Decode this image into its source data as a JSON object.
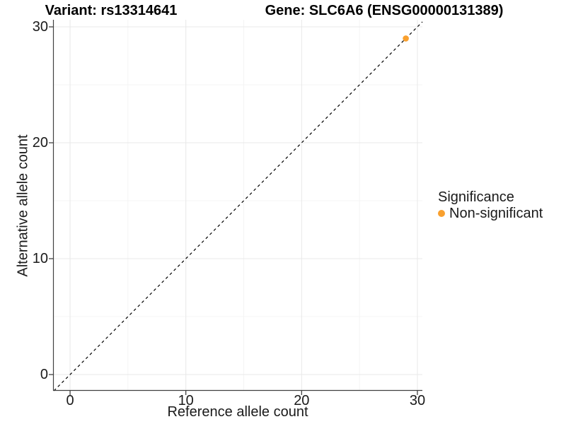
{
  "titles": {
    "variant": "Variant: rs13314641",
    "gene": "Gene: SLC6A6 (ENSG00000131389)"
  },
  "chart_data": {
    "type": "scatter",
    "title": "Variant: rs13314641    Gene: SLC6A6 (ENSG00000131389)",
    "xlabel": "Reference allele count",
    "ylabel": "Alternative allele count",
    "points": [
      {
        "x": 29,
        "y": 29,
        "series": "Non-significant"
      }
    ],
    "x_ticks": [
      0,
      10,
      20,
      30
    ],
    "y_ticks": [
      0,
      10,
      20,
      30
    ],
    "x_minor_ticks": [
      5,
      15,
      25
    ],
    "y_minor_ticks": [
      5,
      15,
      25
    ],
    "xlim": [
      -1.47,
      30.43
    ],
    "ylim": [
      -1.4,
      30.61
    ],
    "grid": true,
    "reference_line": {
      "type": "identity",
      "intercept": 0,
      "slope": 1,
      "style": "dashed"
    },
    "legend": {
      "title": "Significance",
      "position": "right",
      "entries": [
        {
          "label": "Non-significant",
          "color": "#F9A02E",
          "marker": "circle"
        }
      ]
    }
  },
  "colors": {
    "point": "#F9A02E",
    "grid_major": "#e8e8e8",
    "grid_minor": "#f2f2f2",
    "axis_line": "#404040",
    "tick_mark": "#333333",
    "reference_line": "#000000",
    "text": "#1a1a1a",
    "background": "#ffffff"
  }
}
